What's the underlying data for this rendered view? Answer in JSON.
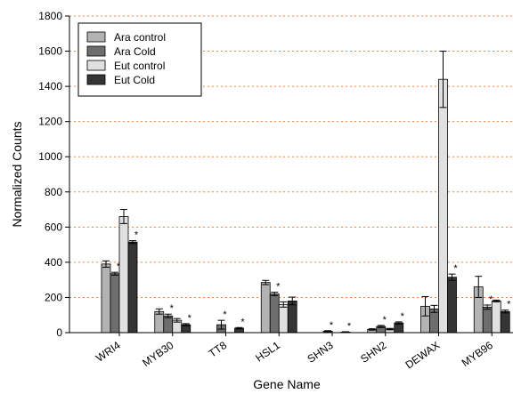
{
  "chart_data": {
    "type": "bar",
    "title": "",
    "xlabel": "Gene Name",
    "ylabel": "Normalized Counts",
    "ylim": [
      0,
      1800
    ],
    "yticks": [
      0,
      200,
      400,
      600,
      800,
      1000,
      1200,
      1400,
      1600,
      1800
    ],
    "grid": "horizontal dotted red",
    "legend_position": "top-left",
    "categories": [
      "WRI4",
      "MYB30",
      "TT8",
      "HSL1",
      "SHN3",
      "SHN2",
      "DEWAX",
      "MYB96"
    ],
    "series": [
      {
        "name": "Ara control",
        "color": "#b3b3b3",
        "values": [
          390,
          120,
          0,
          285,
          0,
          18,
          150,
          260
        ],
        "errors": [
          18,
          15,
          0,
          12,
          0,
          4,
          55,
          60
        ],
        "significant": [
          false,
          false,
          false,
          false,
          false,
          false,
          false,
          false
        ]
      },
      {
        "name": "Ara Cold",
        "color": "#6e6e6e",
        "values": [
          335,
          95,
          45,
          220,
          8,
          35,
          135,
          145
        ],
        "errors": [
          8,
          10,
          25,
          10,
          3,
          6,
          20,
          12
        ],
        "significant": [
          true,
          true,
          true,
          true,
          true,
          true,
          false,
          true
        ]
      },
      {
        "name": "Eut control",
        "color": "#e0e0e0",
        "values": [
          660,
          70,
          0,
          160,
          0,
          20,
          1440,
          180
        ],
        "errors": [
          40,
          10,
          0,
          15,
          0,
          4,
          160,
          5
        ],
        "significant": [
          false,
          false,
          false,
          false,
          false,
          false,
          false,
          false
        ]
      },
      {
        "name": "Eut Cold",
        "color": "#353535",
        "values": [
          515,
          45,
          25,
          180,
          3,
          55,
          315,
          120
        ],
        "errors": [
          8,
          6,
          4,
          22,
          2,
          6,
          18,
          8
        ],
        "significant": [
          true,
          true,
          true,
          false,
          true,
          true,
          true,
          true
        ]
      }
    ],
    "significance_marker": "*"
  }
}
